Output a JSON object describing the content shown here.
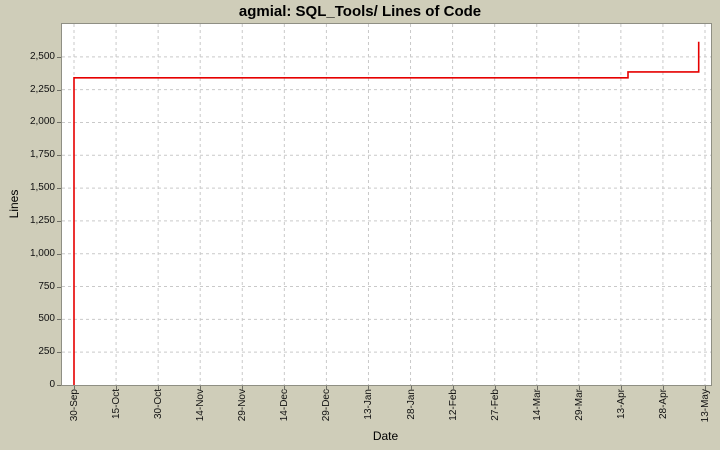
{
  "colors": {
    "background": "#cfcdb9",
    "plot_background": "#ffffff",
    "grid": "#c9c9c9",
    "plot_border": "#8f8f84",
    "tick": "#6e6e64",
    "text": "#000000",
    "line": "#e60000"
  },
  "chart_data": {
    "type": "line",
    "title": "agmial: SQL_Tools/ Lines of Code",
    "xlabel": "Date",
    "ylabel": "Lines",
    "legend": "none",
    "grid": "dashed both axes",
    "ylim_ticks": [
      0,
      2500
    ],
    "ylim_plot": [
      0,
      2750
    ],
    "y_tick_labels": [
      "0",
      "250",
      "500",
      "750",
      "1,000",
      "1,250",
      "1,500",
      "1,750",
      "2,000",
      "2,250",
      "2,500"
    ],
    "x_tick_labels": [
      "30-Sep",
      "15-Oct",
      "30-Oct",
      "14-Nov",
      "29-Nov",
      "14-Dec",
      "29-Dec",
      "13-Jan",
      "28-Jan",
      "12-Feb",
      "27-Feb",
      "14-Mar",
      "29-Mar",
      "13-Apr",
      "28-Apr",
      "13-May"
    ],
    "series": [
      {
        "name": "Lines of Code",
        "color": "#e60000",
        "points": [
          {
            "x_frac": 0.0,
            "value": 0,
            "date": "30-Sep"
          },
          {
            "x_frac": 0.0,
            "value": 2340,
            "date": "30-Sep"
          },
          {
            "x_frac": 0.878,
            "value": 2340,
            "date": "15-Apr"
          },
          {
            "x_frac": 0.878,
            "value": 2385,
            "date": "15-Apr"
          },
          {
            "x_frac": 0.99,
            "value": 2385,
            "date": "11-May"
          },
          {
            "x_frac": 0.99,
            "value": 2615,
            "date": "11-May"
          }
        ]
      }
    ]
  }
}
